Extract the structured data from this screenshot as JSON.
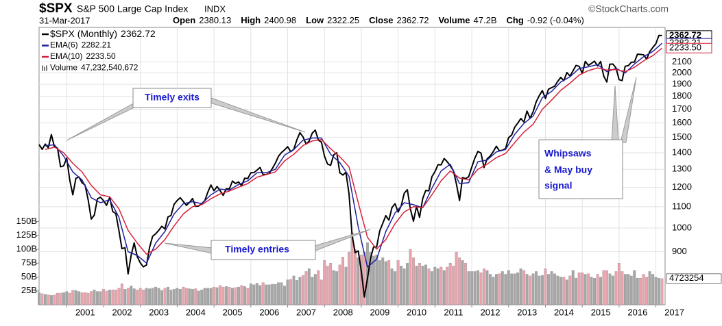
{
  "chart_data": {
    "type": "line",
    "header": {
      "symbol": "$SPX",
      "name": "S&P 500 Large Cap Index",
      "exchange": "INDX",
      "source": "©StockCharts.com",
      "date": "31-Mar-2017",
      "quote": [
        {
          "label": "Open",
          "value": "2380.13"
        },
        {
          "label": "High",
          "value": "2400.98"
        },
        {
          "label": "Low",
          "value": "2322.25"
        },
        {
          "label": "Close",
          "value": "2362.72"
        },
        {
          "label": "Volume",
          "value": "47.2B"
        },
        {
          "label": "Chg",
          "value": "-0.92 (-0.04%)"
        }
      ]
    },
    "x": [
      2000.25,
      2000.333,
      2000.417,
      2000.5,
      2000.583,
      2000.667,
      2000.75,
      2000.833,
      2000.917,
      2001,
      2001.083,
      2001.167,
      2001.25,
      2001.333,
      2001.417,
      2001.5,
      2001.583,
      2001.667,
      2001.75,
      2001.833,
      2001.917,
      2002,
      2002.083,
      2002.167,
      2002.25,
      2002.333,
      2002.417,
      2002.5,
      2002.583,
      2002.667,
      2002.75,
      2002.833,
      2002.917,
      2003,
      2003.083,
      2003.167,
      2003.25,
      2003.333,
      2003.417,
      2003.5,
      2003.583,
      2003.667,
      2003.75,
      2003.833,
      2003.917,
      2004,
      2004.083,
      2004.167,
      2004.25,
      2004.333,
      2004.417,
      2004.5,
      2004.583,
      2004.667,
      2004.75,
      2004.833,
      2004.917,
      2005,
      2005.083,
      2005.167,
      2005.25,
      2005.333,
      2005.417,
      2005.5,
      2005.583,
      2005.667,
      2005.75,
      2005.833,
      2005.917,
      2006,
      2006.083,
      2006.167,
      2006.25,
      2006.333,
      2006.417,
      2006.5,
      2006.583,
      2006.667,
      2006.75,
      2006.833,
      2006.917,
      2007,
      2007.083,
      2007.167,
      2007.25,
      2007.333,
      2007.417,
      2007.5,
      2007.583,
      2007.667,
      2007.75,
      2007.833,
      2007.917,
      2008,
      2008.083,
      2008.167,
      2008.25,
      2008.333,
      2008.417,
      2008.5,
      2008.583,
      2008.667,
      2008.75,
      2008.833,
      2008.917,
      2009,
      2009.083,
      2009.167,
      2009.25,
      2009.333,
      2009.417,
      2009.5,
      2009.583,
      2009.667,
      2009.75,
      2009.833,
      2009.917,
      2010,
      2010.083,
      2010.167,
      2010.25,
      2010.333,
      2010.417,
      2010.5,
      2010.583,
      2010.667,
      2010.75,
      2010.833,
      2010.917,
      2011,
      2011.083,
      2011.167,
      2011.25,
      2011.333,
      2011.417,
      2011.5,
      2011.583,
      2011.667,
      2011.75,
      2011.833,
      2011.917,
      2012,
      2012.083,
      2012.167,
      2012.25,
      2012.333,
      2012.417,
      2012.5,
      2012.583,
      2012.667,
      2012.75,
      2012.833,
      2012.917,
      2013,
      2013.083,
      2013.167,
      2013.25,
      2013.333,
      2013.417,
      2013.5,
      2013.583,
      2013.667,
      2013.75,
      2013.833,
      2013.917,
      2014,
      2014.083,
      2014.167,
      2014.25,
      2014.333,
      2014.417,
      2014.5,
      2014.583,
      2014.667,
      2014.75,
      2014.833,
      2014.917,
      2015,
      2015.083,
      2015.167,
      2015.25,
      2015.333,
      2015.417,
      2015.5,
      2015.583,
      2015.667,
      2015.75,
      2015.833,
      2015.917,
      2016,
      2016.083,
      2016.167,
      2016.25,
      2016.333,
      2016.417,
      2016.5,
      2016.583,
      2016.667,
      2016.75,
      2016.833,
      2016.917,
      2017,
      2017.083,
      2017.167
    ],
    "xlim": [
      2000.25,
      2017.25
    ],
    "xticks": [
      2001,
      2002,
      2003,
      2004,
      2005,
      2006,
      2007,
      2008,
      2009,
      2010,
      2011,
      2012,
      2013,
      2014,
      2015,
      2016,
      2017
    ],
    "ylim": [
      710,
      2450
    ],
    "log_y": true,
    "yticks": [
      900,
      1000,
      1100,
      1200,
      1300,
      1400,
      1500,
      1600,
      1700,
      1800,
      1900,
      2000,
      2100
    ],
    "y2lim": [
      0,
      500
    ],
    "y2ticks": [
      {
        "value": 25,
        "label": "25B"
      },
      {
        "value": 50,
        "label": "50B"
      },
      {
        "value": 75,
        "label": "75B"
      },
      {
        "value": 100,
        "label": "100B"
      },
      {
        "value": 125,
        "label": "125B"
      },
      {
        "value": 150,
        "label": "150B"
      }
    ],
    "grid": true,
    "series": [
      {
        "name": "$SPX (Monthly)",
        "color": "#000000",
        "last_label": "2362.72",
        "values": [
          1452,
          1421,
          1455,
          1431,
          1518,
          1437,
          1429,
          1315,
          1320,
          1366,
          1240,
          1160,
          1249,
          1256,
          1224,
          1211,
          1134,
          1041,
          1060,
          1139,
          1148,
          1130,
          1107,
          1147,
          1077,
          1067,
          990,
          912,
          916,
          815,
          886,
          936,
          880,
          856,
          841,
          848,
          917,
          964,
          975,
          990,
          1008,
          996,
          1051,
          1058,
          1112,
          1131,
          1145,
          1126,
          1107,
          1121,
          1141,
          1102,
          1104,
          1115,
          1130,
          1174,
          1212,
          1181,
          1204,
          1181,
          1157,
          1192,
          1191,
          1234,
          1220,
          1229,
          1207,
          1249,
          1248,
          1280,
          1281,
          1295,
          1311,
          1270,
          1270,
          1277,
          1304,
          1336,
          1378,
          1401,
          1418,
          1438,
          1407,
          1421,
          1482,
          1531,
          1503,
          1455,
          1474,
          1527,
          1549,
          1481,
          1468,
          1379,
          1331,
          1323,
          1386,
          1400,
          1280,
          1267,
          1283,
          1166,
          969,
          896,
          903,
          826,
          735,
          798,
          873,
          919,
          919,
          987,
          1021,
          1057,
          1036,
          1096,
          1115,
          1074,
          1104,
          1169,
          1187,
          1089,
          1031,
          1102,
          1049,
          1141,
          1183,
          1181,
          1258,
          1286,
          1327,
          1326,
          1364,
          1345,
          1321,
          1292,
          1219,
          1131,
          1253,
          1247,
          1258,
          1312,
          1366,
          1408,
          1398,
          1310,
          1362,
          1379,
          1407,
          1441,
          1412,
          1416,
          1426,
          1498,
          1515,
          1569,
          1598,
          1631,
          1606,
          1686,
          1633,
          1682,
          1757,
          1806,
          1848,
          1783,
          1859,
          1872,
          1884,
          1924,
          1960,
          1931,
          2003,
          1972,
          2018,
          2068,
          2059,
          1995,
          2105,
          2068,
          2086,
          2107,
          2063,
          2104,
          1972,
          1920,
          2079,
          2080,
          2044,
          1940,
          1932,
          2060,
          2065,
          2097,
          2099,
          2174,
          2171,
          2168,
          2126,
          2199,
          2239,
          2279,
          2364,
          2362.72
        ]
      },
      {
        "name": "EMA(6)",
        "color": "#1f1f9e",
        "last_label": "2282.21",
        "x": [
          2000.417,
          2000.667,
          2000.917,
          2001.167,
          2001.417,
          2001.667,
          2001.917,
          2002.167,
          2002.417,
          2002.667,
          2002.917,
          2003.167,
          2003.417,
          2003.667,
          2003.917,
          2004.167,
          2004.417,
          2004.667,
          2004.917,
          2005.167,
          2005.417,
          2005.667,
          2005.917,
          2006.167,
          2006.417,
          2006.667,
          2006.917,
          2007.167,
          2007.417,
          2007.667,
          2007.917,
          2008.167,
          2008.417,
          2008.667,
          2008.917,
          2009.167,
          2009.417,
          2009.667,
          2009.917,
          2010.167,
          2010.417,
          2010.667,
          2010.917,
          2011.167,
          2011.417,
          2011.667,
          2011.917,
          2012.167,
          2012.417,
          2012.667,
          2012.917,
          2013.167,
          2013.417,
          2013.667,
          2013.917,
          2014.167,
          2014.417,
          2014.667,
          2014.917,
          2015.167,
          2015.417,
          2015.667,
          2015.917,
          2016.167,
          2016.417,
          2016.667,
          2016.917,
          2017.167
        ],
        "values": [
          1445,
          1450,
          1380,
          1285,
          1240,
          1145,
          1120,
          1135,
          1050,
          900,
          885,
          855,
          935,
          985,
          1065,
          1115,
          1125,
          1115,
          1160,
          1190,
          1185,
          1215,
          1235,
          1280,
          1280,
          1300,
          1385,
          1420,
          1480,
          1495,
          1495,
          1390,
          1340,
          1260,
          1005,
          840,
          870,
          985,
          1070,
          1120,
          1110,
          1095,
          1195,
          1290,
          1330,
          1220,
          1225,
          1345,
          1355,
          1405,
          1420,
          1520,
          1595,
          1650,
          1790,
          1840,
          1920,
          1965,
          2040,
          2055,
          2075,
          2010,
          2040,
          2000,
          2080,
          2150,
          2200,
          2282.21
        ]
      },
      {
        "name": "EMA(10)",
        "color": "#d6203a",
        "last_label": "2233.50",
        "x": [
          2000.417,
          2000.667,
          2000.917,
          2001.167,
          2001.417,
          2001.667,
          2001.917,
          2002.167,
          2002.417,
          2002.667,
          2002.917,
          2003.167,
          2003.417,
          2003.667,
          2003.917,
          2004.167,
          2004.417,
          2004.667,
          2004.917,
          2005.167,
          2005.417,
          2005.667,
          2005.917,
          2006.167,
          2006.417,
          2006.667,
          2006.917,
          2007.167,
          2007.417,
          2007.667,
          2007.917,
          2008.167,
          2008.417,
          2008.667,
          2008.917,
          2009.167,
          2009.417,
          2009.667,
          2009.917,
          2010.167,
          2010.417,
          2010.667,
          2010.917,
          2011.167,
          2011.417,
          2011.667,
          2011.917,
          2012.167,
          2012.417,
          2012.667,
          2012.917,
          2013.167,
          2013.417,
          2013.667,
          2013.917,
          2014.167,
          2014.417,
          2014.667,
          2014.917,
          2015.167,
          2015.417,
          2015.667,
          2015.917,
          2016.167,
          2016.417,
          2016.667,
          2016.917,
          2017.167
        ],
        "values": [
          1420,
          1435,
          1400,
          1335,
          1285,
          1210,
          1160,
          1150,
          1090,
          990,
          935,
          890,
          910,
          950,
          1010,
          1065,
          1100,
          1110,
          1140,
          1165,
          1180,
          1200,
          1220,
          1255,
          1270,
          1285,
          1350,
          1390,
          1445,
          1475,
          1485,
          1425,
          1375,
          1315,
          1120,
          960,
          910,
          950,
          1020,
          1075,
          1100,
          1095,
          1160,
          1235,
          1290,
          1250,
          1240,
          1300,
          1330,
          1370,
          1395,
          1465,
          1535,
          1590,
          1700,
          1770,
          1850,
          1910,
          1980,
          2020,
          2045,
          2025,
          2030,
          2010,
          2050,
          2110,
          2160,
          2233.5
        ]
      },
      {
        "name": "Volume",
        "type": "bar",
        "axis": "y2",
        "up_color": "#a6a6a6",
        "down_color": "#eaa3ad",
        "last_label": "47,232,540,672",
        "tag_label": "4723254",
        "values": [
          22,
          20,
          19,
          18,
          17,
          18,
          21,
          21,
          22,
          24,
          21,
          26,
          26,
          24,
          22,
          22,
          21,
          24,
          27,
          24,
          24,
          28,
          25,
          27,
          27,
          27,
          30,
          38,
          28,
          30,
          34,
          29,
          27,
          30,
          27,
          30,
          29,
          30,
          32,
          30,
          26,
          30,
          32,
          27,
          28,
          30,
          28,
          32,
          30,
          29,
          28,
          29,
          25,
          27,
          30,
          30,
          30,
          32,
          31,
          35,
          32,
          33,
          32,
          30,
          31,
          32,
          35,
          33,
          30,
          38,
          36,
          39,
          35,
          40,
          36,
          36,
          37,
          37,
          40,
          40,
          34,
          45,
          46,
          52,
          44,
          50,
          53,
          60,
          65,
          50,
          55,
          62,
          45,
          80,
          70,
          75,
          62,
          60,
          72,
          86,
          68,
          95,
          130,
          100,
          85,
          90,
          95,
          112,
          95,
          88,
          90,
          80,
          85,
          78,
          80,
          65,
          60,
          80,
          70,
          65,
          75,
          100,
          85,
          70,
          75,
          70,
          72,
          65,
          60,
          68,
          65,
          68,
          62,
          68,
          75,
          70,
          95,
          85,
          80,
          75,
          60,
          60,
          60,
          62,
          58,
          65,
          62,
          55,
          50,
          55,
          56,
          60,
          55,
          62,
          56,
          56,
          58,
          65,
          62,
          55,
          52,
          56,
          60,
          52,
          53,
          65,
          55,
          60,
          56,
          52,
          50,
          50,
          45,
          52,
          62,
          48,
          58,
          58,
          55,
          56,
          50,
          48,
          55,
          50,
          62,
          62,
          56,
          52,
          60,
          75,
          60,
          55,
          55,
          52,
          62,
          48,
          48,
          55,
          50,
          60,
          55,
          50,
          48,
          47.232540672
        ]
      }
    ],
    "annotations": [
      {
        "text": [
          "Timely exits"
        ]
      },
      {
        "text": [
          "Timely entries"
        ]
      },
      {
        "text": [
          "Whipsaws",
          "& May buy",
          "signal"
        ]
      }
    ]
  }
}
